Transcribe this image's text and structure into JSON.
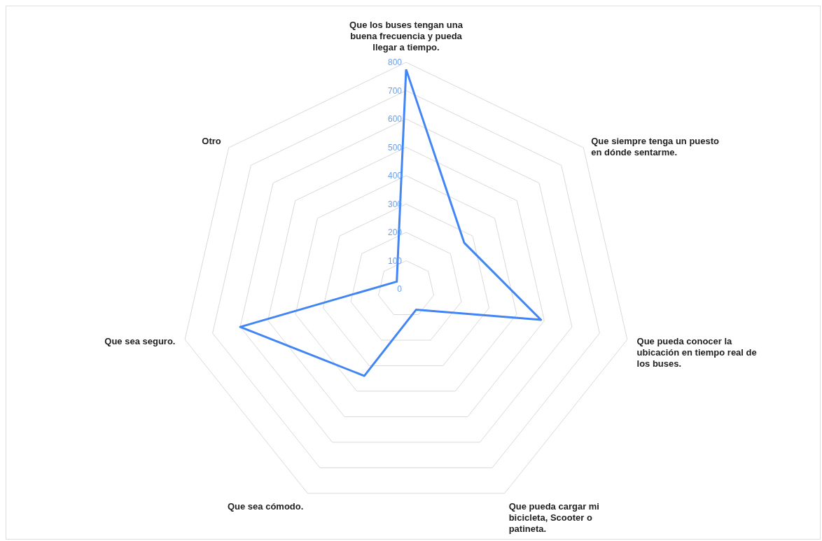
{
  "chart_data": {
    "type": "radar",
    "categories": [
      "Que los buses tengan una buena frecuencia y pueda llegar a tiempo.",
      "Que siempre tenga un puesto en dónde sentarme.",
      "Que pueda conocer la ubicación en tiempo real de los buses.",
      "Que pueda cargar mi bicicleta, Scooter o patineta.",
      "Que sea cómodo.",
      "Que sea seguro.",
      "Otro"
    ],
    "series": [
      {
        "color": "#4285f4",
        "values": [
          775,
          262,
          488,
          81,
          340,
          600,
          42
        ]
      }
    ],
    "ylim": [
      0,
      800
    ],
    "yticks": [
      0,
      100,
      200,
      300,
      400,
      500,
      600,
      700,
      800
    ],
    "grid": true
  }
}
